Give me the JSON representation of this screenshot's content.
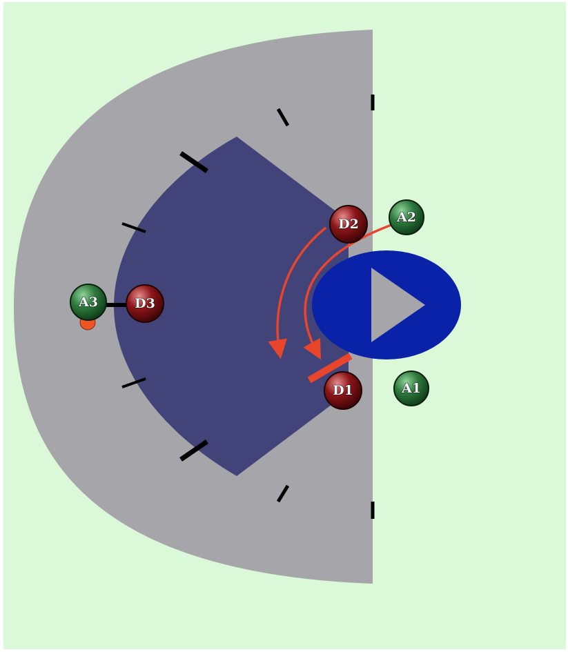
{
  "colors": {
    "background": "#dbf8d8",
    "outer_zone": "#a6a6aa",
    "inner_zone": "#424378",
    "crease": "#0a22a8",
    "goal": "#a6a6aa",
    "attacker": "#2f7a3e",
    "defender": "#8b1518",
    "path_arrow": "#e8452c",
    "ball": "#ee5522",
    "marks": "#000000"
  },
  "players": {
    "A1": {
      "label": "A1",
      "team": "attack"
    },
    "A2": {
      "label": "A2",
      "team": "attack"
    },
    "A3": {
      "label": "A3",
      "team": "attack"
    },
    "D1": {
      "label": "D1",
      "team": "defense"
    },
    "D2": {
      "label": "D2",
      "team": "defense"
    },
    "D3": {
      "label": "D3",
      "team": "defense"
    }
  }
}
